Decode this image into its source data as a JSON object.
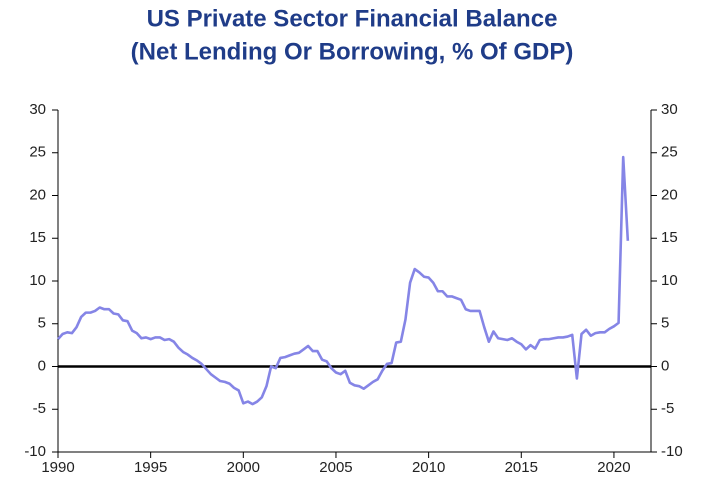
{
  "chart_data": {
    "type": "line",
    "title": [
      "US Private Sector Financial Balance",
      "(Net Lending Or Borrowing, % Of GDP)"
    ],
    "color": "#8585e6",
    "x": [
      1990,
      1990.25,
      1990.5,
      1990.75,
      1991,
      1991.25,
      1991.5,
      1991.75,
      1992,
      1992.25,
      1992.5,
      1992.75,
      1993,
      1993.25,
      1993.5,
      1993.75,
      1994,
      1994.25,
      1994.5,
      1994.75,
      1995,
      1995.25,
      1995.5,
      1995.75,
      1996,
      1996.25,
      1996.5,
      1996.75,
      1997,
      1997.25,
      1997.5,
      1997.75,
      1998,
      1998.25,
      1998.5,
      1998.75,
      1999,
      1999.25,
      1999.5,
      1999.75,
      2000,
      2000.25,
      2000.5,
      2000.75,
      2001,
      2001.25,
      2001.5,
      2001.75,
      2002,
      2002.25,
      2002.5,
      2002.75,
      2003,
      2003.25,
      2003.5,
      2003.75,
      2004,
      2004.25,
      2004.5,
      2004.75,
      2005,
      2005.25,
      2005.5,
      2005.75,
      2006,
      2006.25,
      2006.5,
      2006.75,
      2007,
      2007.25,
      2007.5,
      2007.75,
      2008,
      2008.25,
      2008.5,
      2008.75,
      2009,
      2009.25,
      2009.5,
      2009.75,
      2010,
      2010.25,
      2010.5,
      2010.75,
      2011,
      2011.25,
      2011.5,
      2011.75,
      2012,
      2012.25,
      2012.5,
      2012.75,
      2013,
      2013.25,
      2013.5,
      2013.75,
      2014,
      2014.25,
      2014.5,
      2014.75,
      2015,
      2015.25,
      2015.5,
      2015.75,
      2016,
      2016.25,
      2016.5,
      2016.75,
      2017,
      2017.25,
      2017.5,
      2017.75,
      2018,
      2018.25,
      2018.5,
      2018.75,
      2019,
      2019.25,
      2019.5,
      2019.75,
      2020,
      2020.25,
      2020.5,
      2020.75
    ],
    "values": [
      3.2,
      3.8,
      4.0,
      3.9,
      4.6,
      5.8,
      6.3,
      6.3,
      6.5,
      6.9,
      6.7,
      6.7,
      6.2,
      6.1,
      5.4,
      5.3,
      4.2,
      3.9,
      3.3,
      3.4,
      3.2,
      3.4,
      3.4,
      3.1,
      3.2,
      2.9,
      2.2,
      1.7,
      1.4,
      1.0,
      0.7,
      0.3,
      -0.3,
      -0.9,
      -1.3,
      -1.7,
      -1.8,
      -2.0,
      -2.5,
      -2.8,
      -4.3,
      -4.1,
      -4.4,
      -4.1,
      -3.6,
      -2.3,
      0.0,
      -0.2,
      1.0,
      1.1,
      1.3,
      1.5,
      1.6,
      2.0,
      2.4,
      1.8,
      1.8,
      0.8,
      0.6,
      -0.2,
      -0.7,
      -0.9,
      -0.5,
      -1.9,
      -2.2,
      -2.3,
      -2.6,
      -2.2,
      -1.8,
      -1.5,
      -0.5,
      0.3,
      0.4,
      2.8,
      2.9,
      5.5,
      9.8,
      11.4,
      11.0,
      10.5,
      10.4,
      9.8,
      8.8,
      8.8,
      8.2,
      8.2,
      8.0,
      7.8,
      6.7,
      6.5,
      6.5,
      6.5,
      4.6,
      2.9,
      4.1,
      3.3,
      3.2,
      3.1,
      3.3,
      2.9,
      2.6,
      2.0,
      2.5,
      2.1,
      3.1,
      3.2,
      3.2,
      3.3,
      3.4,
      3.4,
      3.5,
      3.7,
      -1.4,
      3.8,
      4.3,
      3.6,
      3.9,
      4.0,
      4.0,
      4.4,
      4.7,
      5.1,
      24.5,
      14.7
    ],
    "xlim": [
      1990,
      2022
    ],
    "xticks": [
      1990,
      1995,
      2000,
      2005,
      2010,
      2015,
      2020
    ],
    "ylim": [
      -10,
      30
    ],
    "yticks": [
      -10,
      -5,
      0,
      5,
      10,
      15,
      20,
      25,
      30
    ],
    "y2lim": [
      -10,
      30
    ],
    "y2ticks": [
      -10,
      -5,
      0,
      5,
      10,
      15,
      20,
      25,
      30
    ],
    "grid": false
  }
}
